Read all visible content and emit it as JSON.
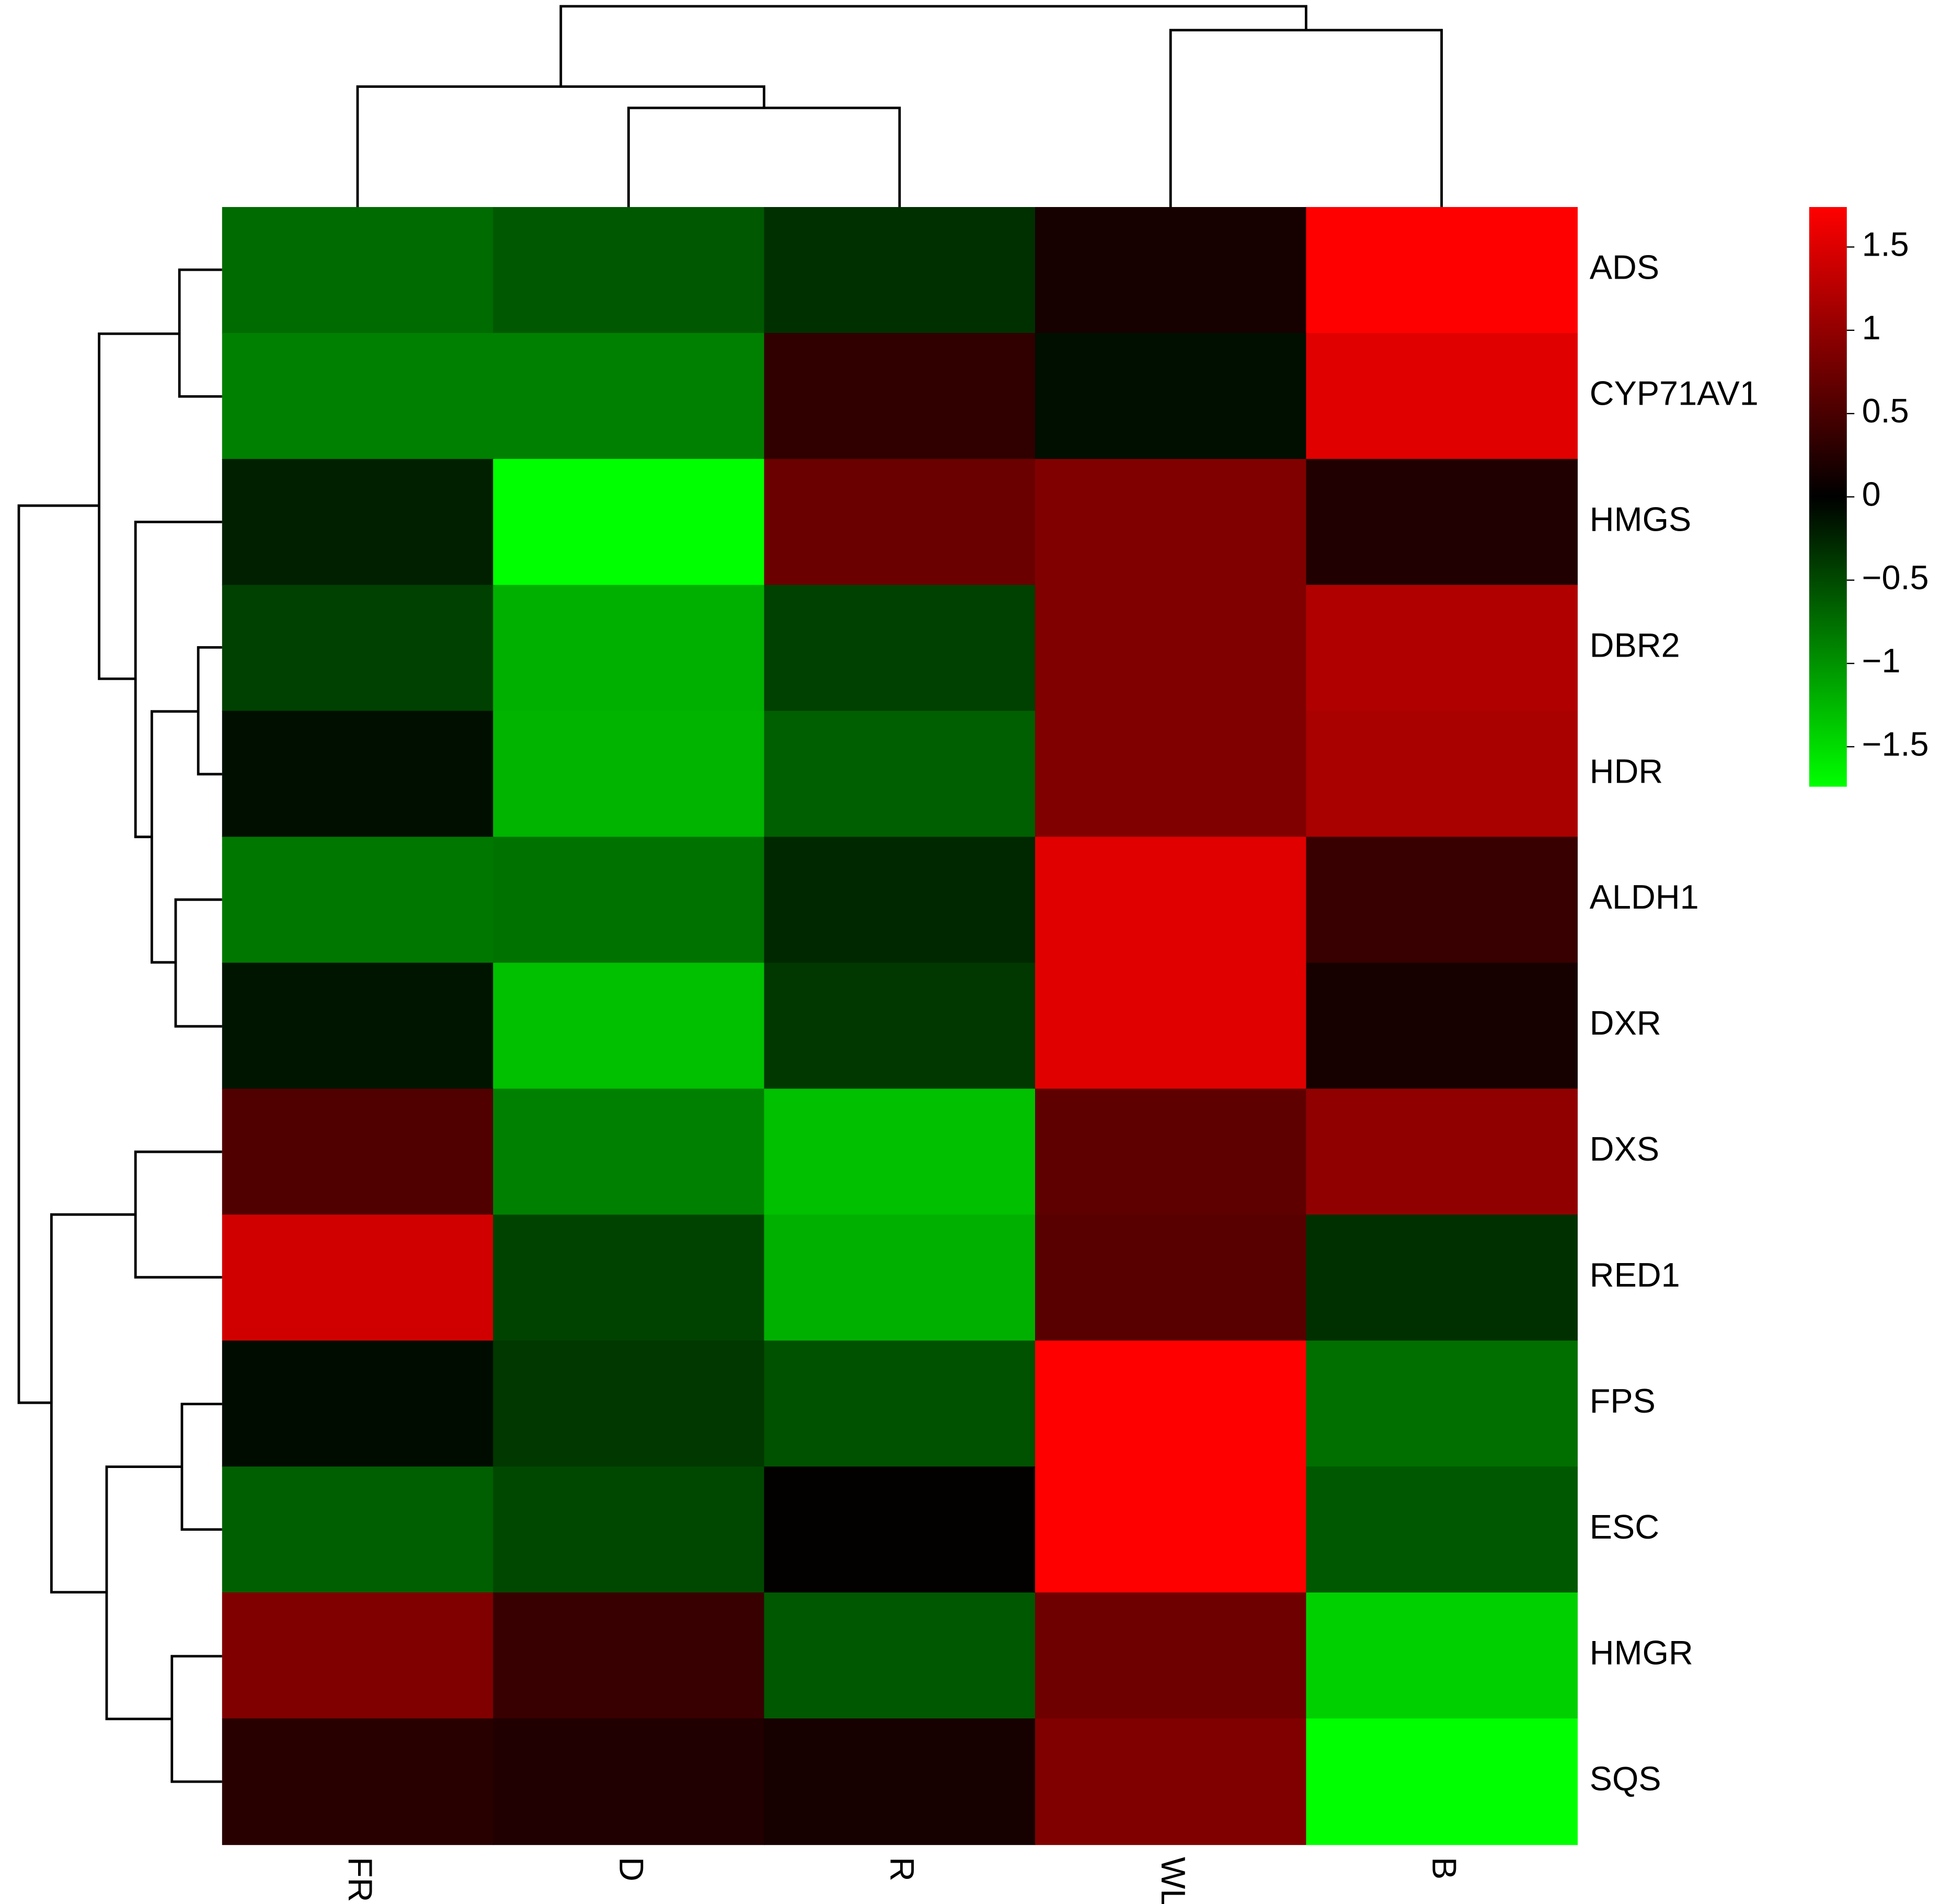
{
  "chart_data": {
    "type": "heatmap",
    "columns": [
      "FR",
      "D",
      "R",
      "WL",
      "B"
    ],
    "rows": [
      "ADS",
      "CYP71AV1",
      "HMGS",
      "DBR2",
      "HDR",
      "ALDH1",
      "DXR",
      "DXS",
      "RED1",
      "FPS",
      "ESC",
      "HMGR",
      "SQS"
    ],
    "values": [
      [
        -0.73,
        -0.61,
        -0.33,
        0.16,
        1.74
      ],
      [
        -0.87,
        -0.87,
        0.33,
        -0.1,
        1.53
      ],
      [
        -0.22,
        -1.74,
        0.72,
        0.87,
        0.22
      ],
      [
        -0.44,
        -1.2,
        -0.44,
        0.87,
        1.2
      ],
      [
        -0.1,
        -1.23,
        -0.65,
        0.87,
        1.15
      ],
      [
        -0.82,
        -0.78,
        -0.27,
        1.53,
        0.38
      ],
      [
        -0.14,
        -1.31,
        -0.38,
        1.53,
        0.16
      ],
      [
        0.55,
        -0.87,
        -1.31,
        0.65,
        0.98
      ],
      [
        1.42,
        -0.46,
        -1.2,
        0.6,
        -0.33
      ],
      [
        -0.08,
        -0.38,
        -0.55,
        1.74,
        -0.76
      ],
      [
        -0.65,
        -0.49,
        0.02,
        1.74,
        -0.6
      ],
      [
        0.87,
        0.38,
        -0.6,
        0.76,
        -1.42
      ],
      [
        0.27,
        0.22,
        0.16,
        0.87,
        -1.74
      ]
    ],
    "colors": [
      "#00ff00",
      "#000000",
      "#ff0000"
    ],
    "clim": [
      -1.74,
      1.74
    ],
    "cticks": [
      {
        "value": -1.5,
        "label": "−1.5"
      },
      {
        "value": -1,
        "label": "−1"
      },
      {
        "value": -0.5,
        "label": "−0.5"
      },
      0,
      0.5,
      1,
      1.5
    ]
  }
}
